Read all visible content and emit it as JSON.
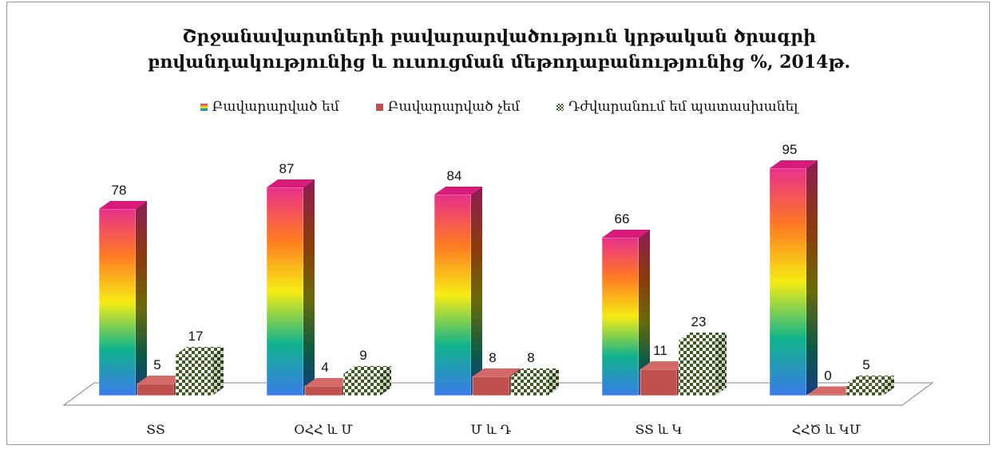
{
  "chart_data": {
    "type": "bar",
    "title_lines": [
      "Շրջանավարտների  բավարարվածություն  կրթական ծրագրի",
      "բովանդակությունից և ուսուցման մեթոդաբանությունից %, 2014թ."
    ],
    "categories": [
      "ՏՏ",
      "ՕՀՀ և Մ",
      "Մ և Դ",
      "ՏՏ և Կ",
      "ՀՀԾ և ԿՄ"
    ],
    "series": [
      {
        "name": "Բավարարված եմ",
        "values": [
          78,
          87,
          84,
          66,
          95
        ],
        "color": "#e8308c"
      },
      {
        "name": "Բավարարված չեմ",
        "values": [
          5,
          4,
          8,
          11,
          0
        ],
        "color": "#c0504d"
      },
      {
        "name": "Դժվարանում եմ պատասխանել",
        "values": [
          17,
          9,
          8,
          23,
          5
        ],
        "color": "#3c5a1e"
      }
    ],
    "ylim": [
      0,
      100
    ],
    "legend_position": "top",
    "grid": false
  }
}
